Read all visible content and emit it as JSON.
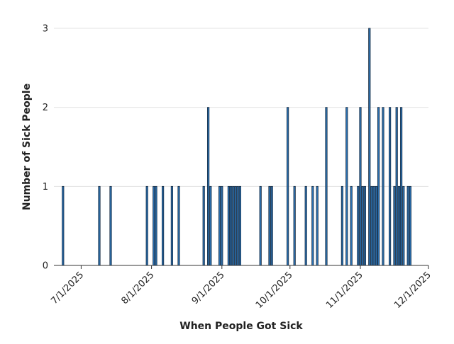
{
  "chart_data": {
    "type": "bar",
    "title": "",
    "xlabel": "When People Got Sick",
    "ylabel": "Number of Sick People",
    "x_type": "date",
    "xlim": [
      "2025-06-19",
      "2025-12-01"
    ],
    "ylim": [
      0,
      3
    ],
    "y_ticks": [
      0,
      1,
      2,
      3
    ],
    "x_ticks": [
      {
        "date": "2025-07-01",
        "label": "7/1/2025"
      },
      {
        "date": "2025-08-01",
        "label": "8/1/2025"
      },
      {
        "date": "2025-09-01",
        "label": "9/1/2025"
      },
      {
        "date": "2025-10-01",
        "label": "10/1/2025"
      },
      {
        "date": "2025-11-01",
        "label": "11/1/2025"
      },
      {
        "date": "2025-12-01",
        "label": "12/1/2025"
      }
    ],
    "grid": "horizontal",
    "bar_color": "#2b6fae",
    "bar_edge_color": "#1b2f45",
    "x": [
      "2025-06-23",
      "2025-07-09",
      "2025-07-14",
      "2025-07-30",
      "2025-08-02",
      "2025-08-03",
      "2025-08-06",
      "2025-08-10",
      "2025-08-13",
      "2025-08-24",
      "2025-08-26",
      "2025-08-27",
      "2025-08-31",
      "2025-09-01",
      "2025-09-04",
      "2025-09-05",
      "2025-09-06",
      "2025-09-07",
      "2025-09-08",
      "2025-09-09",
      "2025-09-18",
      "2025-09-22",
      "2025-09-23",
      "2025-09-30",
      "2025-10-03",
      "2025-10-08",
      "2025-10-11",
      "2025-10-13",
      "2025-10-17",
      "2025-10-24",
      "2025-10-26",
      "2025-10-28",
      "2025-10-31",
      "2025-11-01",
      "2025-11-02",
      "2025-11-03",
      "2025-11-05",
      "2025-11-06",
      "2025-11-07",
      "2025-11-08",
      "2025-11-09",
      "2025-11-11",
      "2025-11-14",
      "2025-11-16",
      "2025-11-17",
      "2025-11-18",
      "2025-11-19",
      "2025-11-20",
      "2025-11-22",
      "2025-11-23"
    ],
    "values": [
      1,
      1,
      1,
      1,
      1,
      1,
      1,
      1,
      1,
      1,
      2,
      1,
      1,
      1,
      1,
      1,
      1,
      1,
      1,
      1,
      1,
      1,
      1,
      2,
      1,
      1,
      1,
      1,
      2,
      1,
      2,
      1,
      1,
      2,
      1,
      1,
      3,
      1,
      1,
      1,
      2,
      2,
      2,
      1,
      2,
      1,
      2,
      1,
      1,
      1
    ]
  }
}
